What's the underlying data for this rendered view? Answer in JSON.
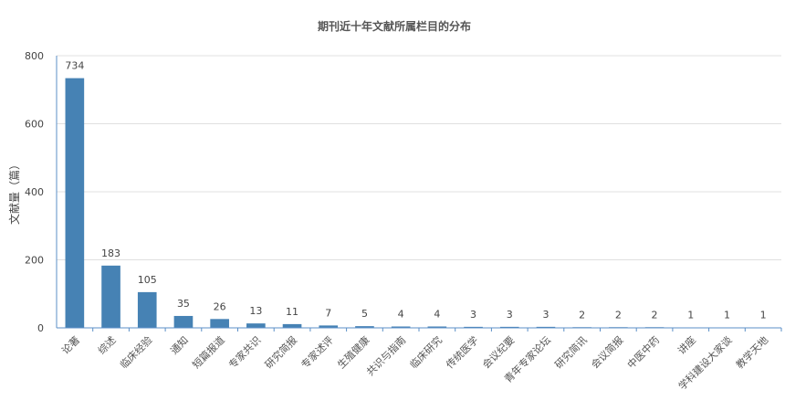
{
  "chart_data": {
    "type": "bar",
    "title": "期刊近十年文献所属栏目的分布",
    "ylabel": "文献量（篇）",
    "xlabel": "",
    "ylim": [
      0,
      800
    ],
    "yticks": [
      0,
      200,
      400,
      600,
      800
    ],
    "grid": true,
    "bar_color": "#4682b4",
    "categories": [
      "论著",
      "综述",
      "临床经验",
      "通知",
      "短篇报道",
      "专家共识",
      "研究简报",
      "专家述评",
      "生殖健康",
      "共识与指南",
      "临床研究",
      "传统医学",
      "会议纪要",
      "青年专家论坛",
      "研究简讯",
      "会议简报",
      "中医中药",
      "讲座",
      "学科建设大家谈",
      "教学天地"
    ],
    "values": [
      734,
      183,
      105,
      35,
      26,
      13,
      11,
      7,
      5,
      4,
      4,
      3,
      3,
      3,
      2,
      2,
      2,
      1,
      1,
      1
    ]
  }
}
